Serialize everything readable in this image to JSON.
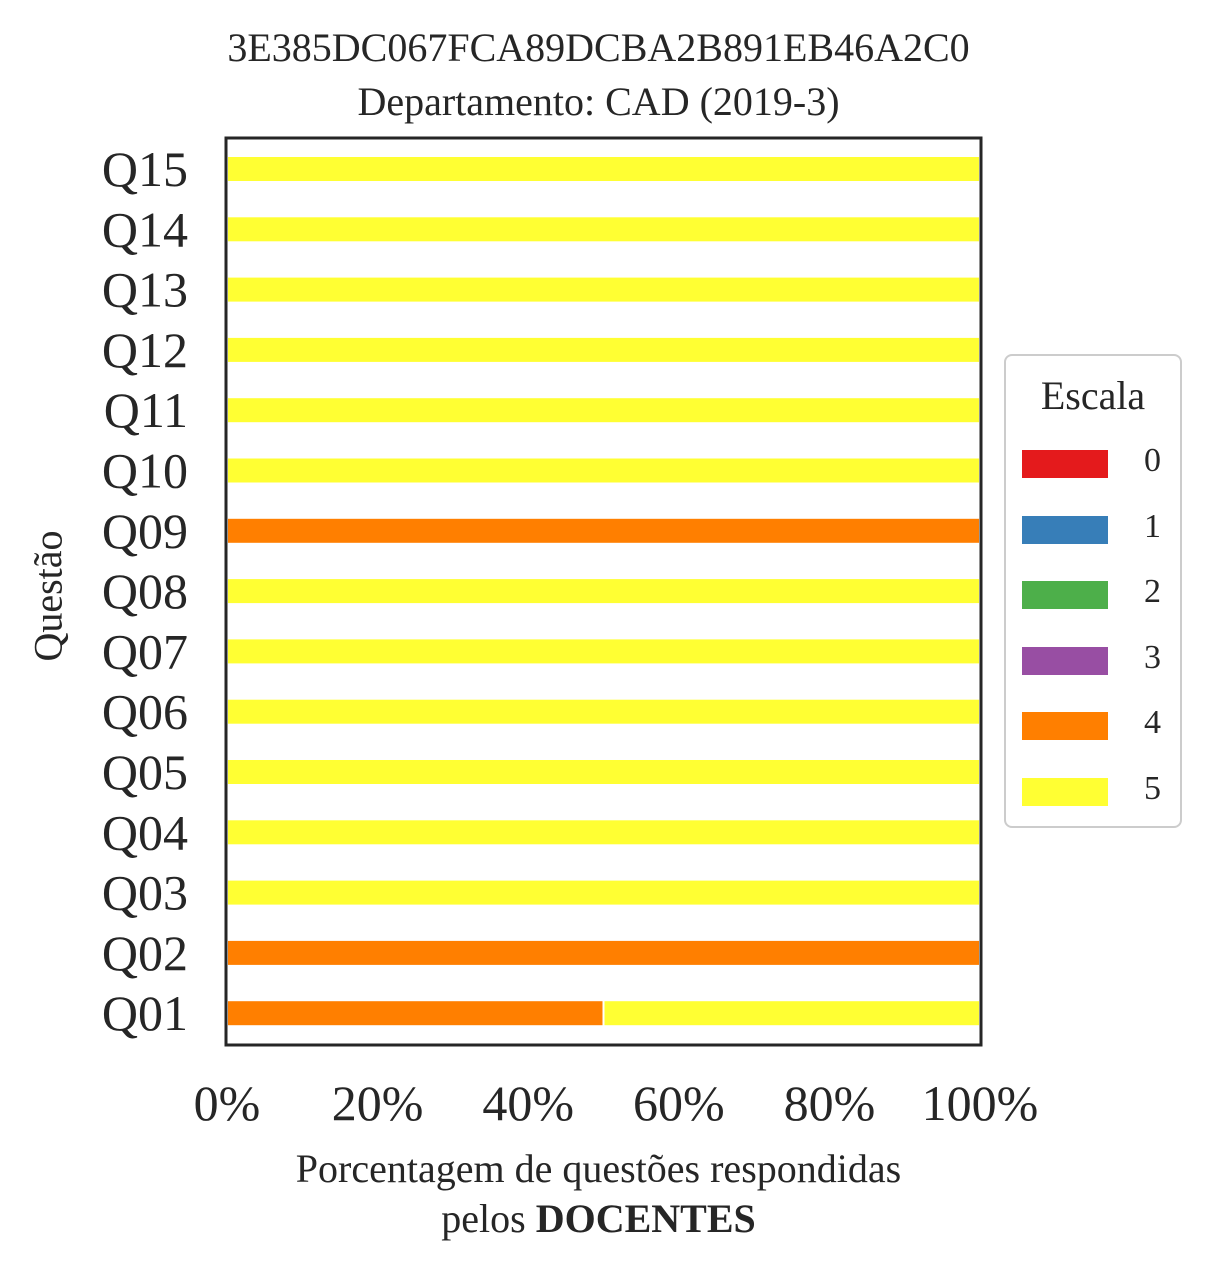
{
  "title": [
    "3E385DC067FCA89DCBA2B891EB46A2C0",
    "Departamento: CAD (2019-3)"
  ],
  "xlabel": {
    "line1": "Porcentagem de questões respondidas",
    "line2_prefix": "pelos ",
    "line2_bold": "DOCENTES"
  },
  "ylabel": "Questão",
  "legend": {
    "title": "Escala",
    "items": [
      {
        "label": "0",
        "color": "#e41a1c"
      },
      {
        "label": "1",
        "color": "#377eb8"
      },
      {
        "label": "2",
        "color": "#4daf4a"
      },
      {
        "label": "3",
        "color": "#984ea3"
      },
      {
        "label": "4",
        "color": "#ff7f00"
      },
      {
        "label": "5",
        "color": "#ffff33"
      }
    ]
  },
  "chart_data": {
    "type": "bar",
    "orientation": "horizontal",
    "stacked": true,
    "title": "3E385DC067FCA89DCBA2B891EB46A2C0\nDepartamento: CAD (2019-3)",
    "xlabel": "Porcentagem de questões respondidas pelos DOCENTES",
    "ylabel": "Questão",
    "xlim": [
      0,
      100
    ],
    "xticks": [
      "0%",
      "20%",
      "40%",
      "60%",
      "80%",
      "100%"
    ],
    "categories": [
      "Q01",
      "Q02",
      "Q03",
      "Q04",
      "Q05",
      "Q06",
      "Q07",
      "Q08",
      "Q09",
      "Q10",
      "Q11",
      "Q12",
      "Q13",
      "Q14",
      "Q15"
    ],
    "series": [
      {
        "name": "0",
        "color": "#e41a1c",
        "values": [
          0,
          0,
          0,
          0,
          0,
          0,
          0,
          0,
          0,
          0,
          0,
          0,
          0,
          0,
          0
        ]
      },
      {
        "name": "1",
        "color": "#377eb8",
        "values": [
          0,
          0,
          0,
          0,
          0,
          0,
          0,
          0,
          0,
          0,
          0,
          0,
          0,
          0,
          0
        ]
      },
      {
        "name": "2",
        "color": "#4daf4a",
        "values": [
          0,
          0,
          0,
          0,
          0,
          0,
          0,
          0,
          0,
          0,
          0,
          0,
          0,
          0,
          0
        ]
      },
      {
        "name": "3",
        "color": "#984ea3",
        "values": [
          0,
          0,
          0,
          0,
          0,
          0,
          0,
          0,
          0,
          0,
          0,
          0,
          0,
          0,
          0
        ]
      },
      {
        "name": "4",
        "color": "#ff7f00",
        "values": [
          50,
          100,
          0,
          0,
          0,
          0,
          0,
          0,
          100,
          0,
          0,
          0,
          0,
          0,
          0
        ]
      },
      {
        "name": "5",
        "color": "#ffff33",
        "values": [
          50,
          0,
          100,
          100,
          100,
          100,
          100,
          100,
          0,
          100,
          100,
          100,
          100,
          100,
          100
        ]
      }
    ],
    "legend_title": "Escala",
    "legend_position": "right",
    "grid": false
  }
}
